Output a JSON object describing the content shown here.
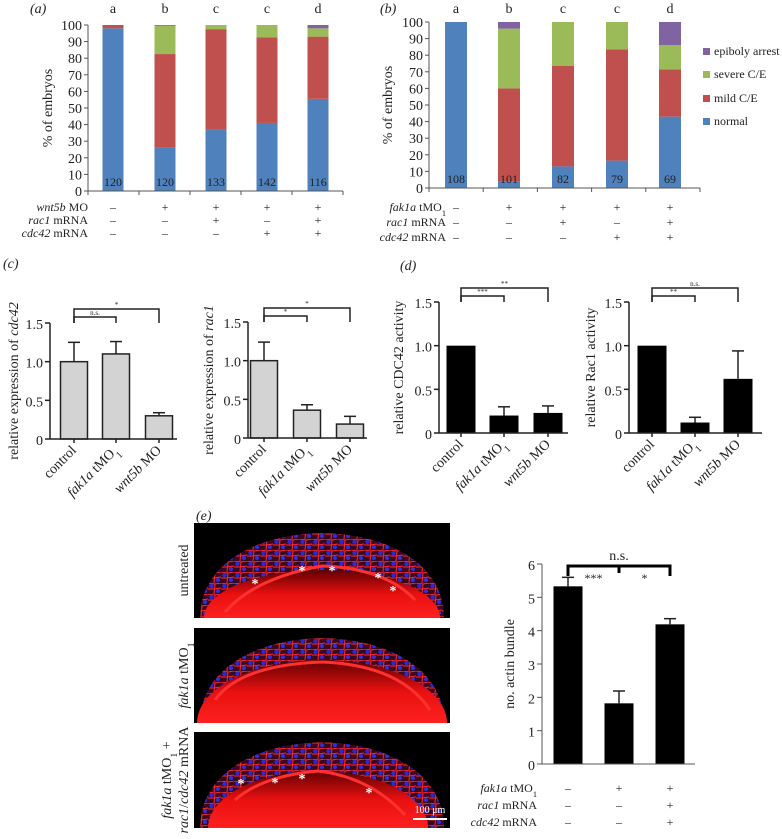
{
  "panel_labels": {
    "a": "(a)",
    "b": "(b)",
    "c": "(c)",
    "d": "(d)",
    "e": "(e)"
  },
  "colors": {
    "normal": "#4f81bd",
    "mild": "#c0504d",
    "severe": "#9bbb59",
    "epiboly": "#8064a2",
    "grey_bar": "#d3d3d3",
    "black_bar": "#000000"
  },
  "chart_data": [
    {
      "panel": "a",
      "type": "bar",
      "stacked": true,
      "ylabel": "% of embryos",
      "ylim": [
        0,
        100
      ],
      "yticks": [
        "0",
        "10",
        "20",
        "30",
        "40",
        "50",
        "60",
        "70",
        "80",
        "90",
        "100"
      ],
      "group_letters": [
        "a",
        "b",
        "c",
        "c",
        "d"
      ],
      "n_labels": [
        "120",
        "120",
        "133",
        "142",
        "116"
      ],
      "series": [
        {
          "name": "normal",
          "color": "#4f81bd",
          "values": [
            98,
            26,
            37,
            41,
            55.5
          ]
        },
        {
          "name": "mild C/E",
          "color": "#c0504d",
          "values": [
            2,
            56.5,
            60.5,
            51.5,
            37.5
          ]
        },
        {
          "name": "severe C/E",
          "color": "#9bbb59",
          "values": [
            0,
            17,
            2.5,
            7.5,
            5
          ]
        },
        {
          "name": "epiboly arrest",
          "color": "#8064a2",
          "values": [
            0,
            0.5,
            0,
            0,
            2
          ]
        }
      ],
      "treatments": [
        {
          "label": [
            [
              "wnt5b",
              "i"
            ],
            [
              " MO",
              ""
            ]
          ],
          "signs": [
            "–",
            "+",
            "+",
            "+",
            "+"
          ]
        },
        {
          "label": [
            [
              "rac1",
              "i"
            ],
            [
              " mRNA",
              ""
            ]
          ],
          "signs": [
            "–",
            "–",
            "+",
            "–",
            "+"
          ]
        },
        {
          "label": [
            [
              "cdc42",
              "i"
            ],
            [
              " mRNA",
              ""
            ]
          ],
          "signs": [
            "–",
            "–",
            "–",
            "+",
            "+"
          ]
        }
      ]
    },
    {
      "panel": "b",
      "type": "bar",
      "stacked": true,
      "ylabel": "% of embryos",
      "ylim": [
        0,
        100
      ],
      "yticks": [
        "0",
        "10",
        "20",
        "30",
        "40",
        "50",
        "60",
        "70",
        "80",
        "90",
        "100"
      ],
      "group_letters": [
        "a",
        "b",
        "c",
        "c",
        "d"
      ],
      "n_labels": [
        "108",
        "101",
        "82",
        "79",
        "69"
      ],
      "series": [
        {
          "name": "normal",
          "color": "#4f81bd",
          "values": [
            100,
            4,
            13,
            16.5,
            43
          ]
        },
        {
          "name": "mild C/E",
          "color": "#c0504d",
          "values": [
            0,
            56,
            60.5,
            67,
            28.5
          ]
        },
        {
          "name": "severe C/E",
          "color": "#9bbb59",
          "values": [
            0,
            36,
            26.5,
            16.5,
            14.5
          ]
        },
        {
          "name": "epiboly arrest",
          "color": "#8064a2",
          "values": [
            0,
            4,
            0,
            0,
            14
          ]
        }
      ],
      "legend": {
        "placement": "right",
        "entries": [
          "epiboly arrest",
          "severe C/E",
          "mild C/E",
          "normal"
        ],
        "colors": [
          "#8064a2",
          "#9bbb59",
          "#c0504d",
          "#4f81bd"
        ]
      },
      "treatments": [
        {
          "label": [
            [
              "fak1a",
              "i"
            ],
            [
              " tMO",
              ""
            ],
            [
              "1",
              "sub"
            ]
          ],
          "signs": [
            "–",
            "+",
            "+",
            "+",
            "+"
          ]
        },
        {
          "label": [
            [
              "rac1",
              "i"
            ],
            [
              " mRNA",
              ""
            ]
          ],
          "signs": [
            "–",
            "–",
            "+",
            "–",
            "+"
          ]
        },
        {
          "label": [
            [
              "cdc42",
              "i"
            ],
            [
              " mRNA",
              ""
            ]
          ],
          "signs": [
            "–",
            "–",
            "–",
            "+",
            "+"
          ]
        }
      ]
    },
    {
      "panel": "c",
      "type": "bar",
      "ylabel": [
        [
          "relative expression of ",
          ""
        ],
        [
          "cdc42",
          "i"
        ]
      ],
      "ylim": [
        0,
        1.5
      ],
      "yticks": [
        "0",
        "0.5",
        "1.0",
        "1.5"
      ],
      "categories": [
        [
          [
            "control",
            ""
          ]
        ],
        [
          [
            "fak1a",
            "i"
          ],
          [
            " tMO",
            ""
          ],
          [
            "1",
            "sub"
          ]
        ],
        [
          [
            "wnt5b",
            "i"
          ],
          [
            " MO",
            ""
          ]
        ]
      ],
      "values": [
        1.0,
        1.1,
        0.3
      ],
      "errors": [
        0.25,
        0.16,
        0.04
      ],
      "bar_color": "#d3d3d3",
      "significance": [
        {
          "from": 0,
          "to": 1,
          "label": "n.s."
        },
        {
          "from": 0,
          "to": 2,
          "label": "*"
        }
      ]
    },
    {
      "panel": "c",
      "type": "bar",
      "ylabel": [
        [
          "relative expression of ",
          ""
        ],
        [
          "rac1",
          "i"
        ]
      ],
      "ylim": [
        0,
        1.5
      ],
      "yticks": [
        "0",
        "0.5",
        "1.0",
        "1.5"
      ],
      "categories": [
        [
          [
            "control",
            ""
          ]
        ],
        [
          [
            "fak1a",
            "i"
          ],
          [
            " tMO",
            ""
          ],
          [
            "1",
            "sub"
          ]
        ],
        [
          [
            "wnt5b",
            "i"
          ],
          [
            " MO",
            ""
          ]
        ]
      ],
      "values": [
        1.0,
        0.36,
        0.18
      ],
      "errors": [
        0.24,
        0.07,
        0.1
      ],
      "bar_color": "#d3d3d3",
      "significance": [
        {
          "from": 0,
          "to": 1,
          "label": "*"
        },
        {
          "from": 0,
          "to": 2,
          "label": "*"
        }
      ]
    },
    {
      "panel": "d",
      "type": "bar",
      "ylabel": [
        [
          "relative CDC42 activity",
          ""
        ]
      ],
      "ylim": [
        0,
        1.5
      ],
      "yticks": [
        "0",
        "0.5",
        "1.0",
        "1.5"
      ],
      "categories": [
        [
          [
            "control",
            ""
          ]
        ],
        [
          [
            "fak1a",
            "i"
          ],
          [
            " tMO",
            ""
          ],
          [
            "1",
            "sub"
          ]
        ],
        [
          [
            "wnt5b",
            "i"
          ],
          [
            " MO",
            ""
          ]
        ]
      ],
      "values": [
        1.0,
        0.2,
        0.23
      ],
      "errors": [
        0,
        0.1,
        0.08
      ],
      "bar_color": "#000000",
      "significance": [
        {
          "from": 0,
          "to": 1,
          "label": "***"
        },
        {
          "from": 0,
          "to": 2,
          "label": "**"
        }
      ]
    },
    {
      "panel": "d",
      "type": "bar",
      "ylabel": [
        [
          "relative Rac1 activity",
          ""
        ]
      ],
      "ylim": [
        0,
        1.5
      ],
      "yticks": [
        "0",
        "0.5",
        "1.0",
        "1.5"
      ],
      "categories": [
        [
          [
            "control",
            ""
          ]
        ],
        [
          [
            "fak1a",
            "i"
          ],
          [
            " tMO",
            ""
          ],
          [
            "1",
            "sub"
          ]
        ],
        [
          [
            "wnt5b",
            "i"
          ],
          [
            " MO",
            ""
          ]
        ]
      ],
      "values": [
        1.0,
        0.12,
        0.62
      ],
      "errors": [
        0,
        0.06,
        0.32
      ],
      "bar_color": "#000000",
      "significance": [
        {
          "from": 0,
          "to": 1,
          "label": "**"
        },
        {
          "from": 0,
          "to": 2,
          "label": "n.s."
        }
      ]
    },
    {
      "panel": "e",
      "type": "bar",
      "ylabel": [
        [
          "no. actin bundle",
          ""
        ]
      ],
      "ylim": [
        0,
        6
      ],
      "yticks": [
        "0",
        "1",
        "2",
        "3",
        "4",
        "5",
        "6"
      ],
      "values": [
        5.33,
        1.82,
        4.19
      ],
      "errors": [
        0.27,
        0.37,
        0.17
      ],
      "bar_color": "#000000",
      "significance": [
        {
          "from": 0,
          "to": 1,
          "label": "***"
        },
        {
          "from": 1,
          "to": 2,
          "label": "*"
        },
        {
          "from": 0,
          "to": 2,
          "label": "n.s."
        }
      ],
      "treatments": [
        {
          "label": [
            [
              "fak1a",
              "i"
            ],
            [
              " tMO",
              ""
            ],
            [
              "1",
              "sub"
            ]
          ],
          "signs": [
            "–",
            "+",
            "+"
          ]
        },
        {
          "label": [
            [
              "rac1",
              "i"
            ],
            [
              " mRNA",
              ""
            ]
          ],
          "signs": [
            "–",
            "–",
            "+"
          ]
        },
        {
          "label": [
            [
              "cdc42",
              "i"
            ],
            [
              " mRNA",
              ""
            ]
          ],
          "signs": [
            "–",
            "–",
            "+"
          ]
        }
      ]
    }
  ],
  "micrographs": {
    "rows": [
      {
        "label": [
          [
            [
              "untreated",
              ""
            ]
          ]
        ]
      },
      {
        "label": [
          [
            [
              "fak1a",
              "i"
            ],
            [
              " tMO",
              ""
            ],
            [
              "1",
              "sub"
            ]
          ]
        ]
      },
      {
        "label": [
          [
            [
              "fak1a",
              "i"
            ],
            [
              " tMO",
              ""
            ],
            [
              "1",
              "sub"
            ],
            [
              " +",
              ""
            ]
          ],
          [
            [
              "rac1",
              "i"
            ],
            [
              "/",
              ""
            ],
            [
              "cdc42",
              "i"
            ],
            [
              " mRNA",
              ""
            ]
          ]
        ]
      }
    ],
    "marker": "*",
    "scale_bar": "100 μm"
  }
}
